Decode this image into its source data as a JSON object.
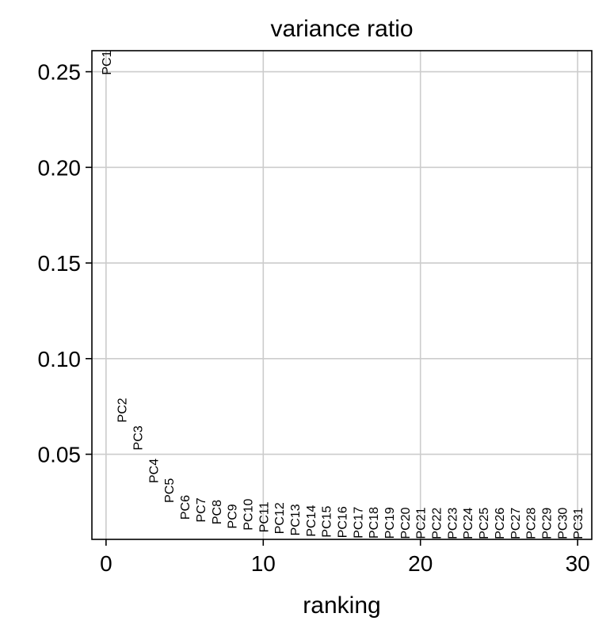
{
  "chart_data": {
    "type": "scatter",
    "title": "variance ratio",
    "xlabel": "ranking",
    "ylabel": "",
    "xlim": [
      -0.9,
      30.9
    ],
    "ylim": [
      0.0055,
      0.261
    ],
    "xticks": [
      0,
      10,
      20,
      30
    ],
    "yticks": [
      0.05,
      0.1,
      0.15,
      0.2,
      0.25
    ],
    "ytick_labels": [
      "0.05",
      "0.10",
      "0.15",
      "0.20",
      "0.25"
    ],
    "grid": true,
    "marker": "text-label",
    "points": [
      {
        "label": "PC1",
        "x": 0,
        "y": 0.2483
      },
      {
        "label": "PC2",
        "x": 1,
        "y": 0.0666
      },
      {
        "label": "PC3",
        "x": 2,
        "y": 0.0521
      },
      {
        "label": "PC4",
        "x": 3,
        "y": 0.0349
      },
      {
        "label": "PC5",
        "x": 4,
        "y": 0.0246
      },
      {
        "label": "PC6",
        "x": 5,
        "y": 0.0158
      },
      {
        "label": "PC7",
        "x": 6,
        "y": 0.0144
      },
      {
        "label": "PC8",
        "x": 7,
        "y": 0.0133
      },
      {
        "label": "PC9",
        "x": 8,
        "y": 0.0111
      },
      {
        "label": "PC10",
        "x": 9,
        "y": 0.0102
      },
      {
        "label": "PC11",
        "x": 10,
        "y": 0.0091
      },
      {
        "label": "PC12",
        "x": 11,
        "y": 0.0083
      },
      {
        "label": "PC13",
        "x": 12,
        "y": 0.0074
      },
      {
        "label": "PC14",
        "x": 13,
        "y": 0.0069
      },
      {
        "label": "PC15",
        "x": 14,
        "y": 0.0065
      },
      {
        "label": "PC16",
        "x": 15,
        "y": 0.0062
      },
      {
        "label": "PC17",
        "x": 16,
        "y": 0.006
      },
      {
        "label": "PC18",
        "x": 17,
        "y": 0.0059
      },
      {
        "label": "PC19",
        "x": 18,
        "y": 0.0058
      },
      {
        "label": "PC20",
        "x": 19,
        "y": 0.0057
      },
      {
        "label": "PC21",
        "x": 20,
        "y": 0.0057
      },
      {
        "label": "PC22",
        "x": 21,
        "y": 0.0056
      },
      {
        "label": "PC23",
        "x": 22,
        "y": 0.0056
      },
      {
        "label": "PC24",
        "x": 23,
        "y": 0.0056
      },
      {
        "label": "PC25",
        "x": 24,
        "y": 0.0056
      },
      {
        "label": "PC26",
        "x": 25,
        "y": 0.0056
      },
      {
        "label": "PC27",
        "x": 26,
        "y": 0.0056
      },
      {
        "label": "PC28",
        "x": 27,
        "y": 0.0056
      },
      {
        "label": "PC29",
        "x": 28,
        "y": 0.0056
      },
      {
        "label": "PC30",
        "x": 29,
        "y": 0.0056
      },
      {
        "label": "PC31",
        "x": 30,
        "y": 0.0056
      }
    ]
  }
}
